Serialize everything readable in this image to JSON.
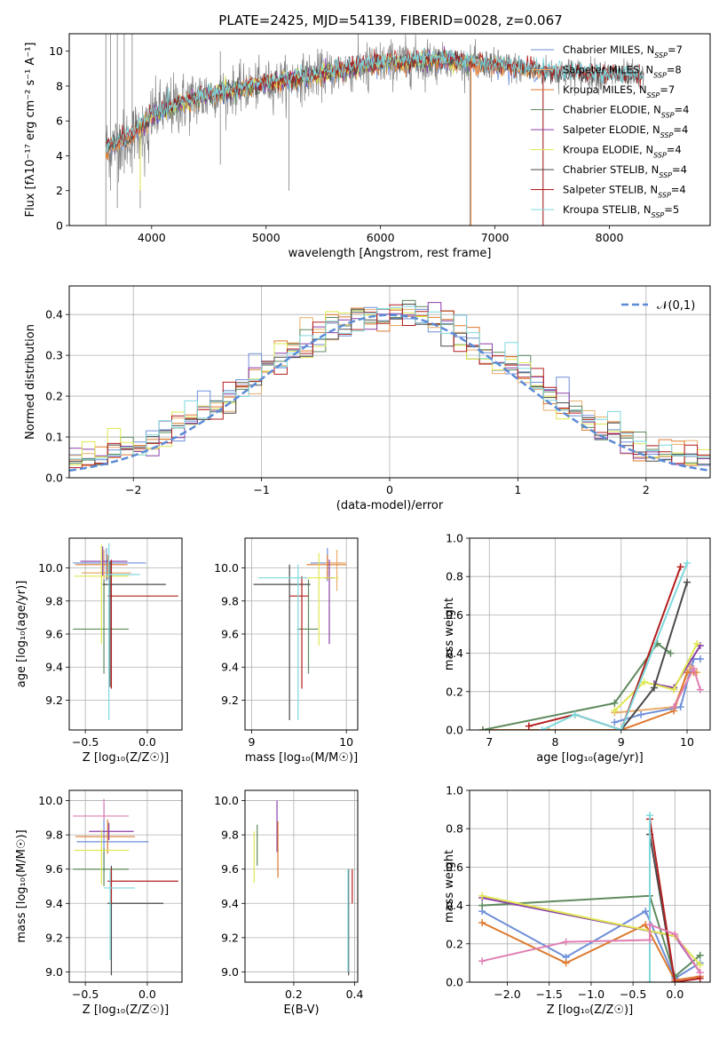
{
  "colors": {
    "Chabrier MILES": "#6f8fd8",
    "Salpeter MILES": "#e8ac6a",
    "Kroupa MILES": "#dd7a2f",
    "Chabrier ELODIE": "#5e8a5e",
    "Salpeter ELODIE": "#8b3fa8",
    "Kroupa ELODIE": "#dfe850",
    "Chabrier STELIB": "#4a4a4a",
    "Salpeter STELIB": "#b21e1e",
    "Kroupa STELIB": "#7dd8dc",
    "extra": "#e07fb2",
    "gauss": "#5b8bd6",
    "spectrum": "#808080"
  },
  "chart_data": [
    {
      "id": "spectrum",
      "type": "line",
      "title": "PLATE=2425, MJD=54139, FIBERID=0028, z=0.067",
      "xlabel": "wavelength [Angstrom, rest frame]",
      "ylabel": "Flux [fλ10⁻¹⁷ erg cm⁻² s⁻¹ A⁻¹]",
      "xlim": [
        3280,
        8880
      ],
      "ylim": [
        0,
        11
      ],
      "xticks": [
        4000,
        5000,
        6000,
        7000,
        8000
      ],
      "yticks": [
        0,
        2,
        4,
        6,
        8,
        10
      ],
      "legend_position": "right",
      "series": [
        {
          "name": "Chabrier MILES, N",
          "sub": "SSP",
          "suffix": "=7"
        },
        {
          "name": "Salpeter MILES, N",
          "sub": "SSP",
          "suffix": "=8"
        },
        {
          "name": "Kroupa MILES, N",
          "sub": "SSP",
          "suffix": "=7"
        },
        {
          "name": "Chabrier ELODIE, N",
          "sub": "SSP",
          "suffix": "=4"
        },
        {
          "name": "Salpeter ELODIE, N",
          "sub": "SSP",
          "suffix": "=4"
        },
        {
          "name": "Kroupa ELODIE, N",
          "sub": "SSP",
          "suffix": "=4"
        },
        {
          "name": "Chabrier STELIB, N",
          "sub": "SSP",
          "suffix": "=4"
        },
        {
          "name": "Salpeter STELIB, N",
          "sub": "SSP",
          "suffix": "=4"
        },
        {
          "name": "Kroupa STELIB, N",
          "sub": "SSP",
          "suffix": "=5"
        }
      ],
      "continuum": [
        [
          3600,
          4.5
        ],
        [
          3800,
          5.0
        ],
        [
          4000,
          6.3
        ],
        [
          4200,
          6.9
        ],
        [
          4500,
          7.5
        ],
        [
          5000,
          8.1
        ],
        [
          5500,
          8.7
        ],
        [
          6000,
          9.3
        ],
        [
          6500,
          9.5
        ],
        [
          7000,
          9.2
        ],
        [
          7500,
          8.8
        ],
        [
          8000,
          8.6
        ],
        [
          8300,
          8.5
        ]
      ]
    },
    {
      "id": "residuals",
      "type": "histogram",
      "xlabel": "(data-model)/error",
      "ylabel": "Normed distribution",
      "xlim": [
        -2.5,
        2.5
      ],
      "ylim": [
        0,
        0.47
      ],
      "xticks": [
        -2,
        -1,
        0,
        1,
        2
      ],
      "yticks": [
        0.0,
        0.1,
        0.2,
        0.3,
        0.4
      ],
      "legend": "𝒩(0,1)",
      "legend_position": "top-right",
      "bin_width": 0.1,
      "grid": true
    },
    {
      "id": "z-age",
      "type": "errorbar",
      "xlabel": "Z [log₁₀(Z/Z☉)]",
      "ylabel": "age  [log₁₀(age/yr)]",
      "xlim": [
        -0.63,
        0.28
      ],
      "ylim": [
        9.02,
        10.18
      ],
      "xticks": [
        -0.5,
        0.0
      ],
      "yticks": [
        9.2,
        9.4,
        9.6,
        9.8,
        10.0
      ],
      "grid": true,
      "points": [
        {
          "x": -0.33,
          "xerr": [
            0.27,
            0.32
          ],
          "y": 10.03,
          "yerr": [
            0.11,
            0.09
          ],
          "color": "#6f8fd8"
        },
        {
          "x": -0.35,
          "xerr": [
            0.18,
            0.22
          ],
          "y": 9.97,
          "yerr": [
            0.17,
            0.14
          ],
          "color": "#e8ac6a"
        },
        {
          "x": -0.32,
          "xerr": [
            0.26,
            0.16
          ],
          "y": 10.02,
          "yerr": [
            0.09,
            0.06
          ],
          "color": "#dd7a2f"
        },
        {
          "x": -0.35,
          "xerr": [
            0.25,
            0.2
          ],
          "y": 9.63,
          "yerr": [
            0.27,
            0.3
          ],
          "color": "#5e8a5e"
        },
        {
          "x": -0.36,
          "xerr": [
            0.18,
            0.2
          ],
          "y": 10.04,
          "yerr": [
            0.09,
            0.09
          ],
          "color": "#8b3fa8"
        },
        {
          "x": -0.37,
          "xerr": [
            0.22,
            0.22
          ],
          "y": 9.95,
          "yerr": [
            0.41,
            0.19
          ],
          "color": "#dfe850"
        },
        {
          "x": -0.3,
          "xerr": [
            0.06,
            0.45
          ],
          "y": 9.9,
          "yerr": [
            0.62,
            0.14
          ],
          "color": "#4a4a4a"
        },
        {
          "x": -0.29,
          "xerr": [
            0.03,
            0.54
          ],
          "y": 9.83,
          "yerr": [
            0.56,
            0.22
          ],
          "color": "#b21e1e"
        },
        {
          "x": -0.31,
          "xerr": [
            0.02,
            0.25
          ],
          "y": 9.96,
          "yerr": [
            0.88,
            0.19
          ],
          "color": "#7dd8dc"
        }
      ]
    },
    {
      "id": "mass-age",
      "type": "errorbar",
      "xlabel": "mass [log₁₀(M/M☉)]",
      "ylabel": "",
      "xlim": [
        8.93,
        10.12
      ],
      "ylim": [
        9.02,
        10.18
      ],
      "xticks": [
        9,
        10
      ],
      "yticks": [
        9.2,
        9.4,
        9.6,
        9.8,
        10.0
      ],
      "grid": true,
      "points": [
        {
          "x": 9.8,
          "xerr": [
            0.18,
            0.16
          ],
          "y": 10.03,
          "yerr": [
            0.11,
            0.09
          ],
          "color": "#6f8fd8"
        },
        {
          "x": 9.9,
          "xerr": [
            0.12,
            0.1
          ],
          "y": 10.03,
          "yerr": [
            0.17,
            0.08
          ],
          "color": "#e8ac6a"
        },
        {
          "x": 9.8,
          "xerr": [
            0.22,
            0.2
          ],
          "y": 10.02,
          "yerr": [
            0.09,
            0.06
          ],
          "color": "#dd7a2f"
        },
        {
          "x": 9.6,
          "xerr": [
            0.12,
            0.1
          ],
          "y": 9.63,
          "yerr": [
            0.27,
            0.3
          ],
          "color": "#5e8a5e"
        },
        {
          "x": 9.82,
          "xerr": [
            0.05,
            0.05
          ],
          "y": 9.94,
          "yerr": [
            0.4,
            0.11
          ],
          "color": "#8b3fa8"
        },
        {
          "x": 9.71,
          "xerr": [
            0.12,
            0.21
          ],
          "y": 9.94,
          "yerr": [
            0.41,
            0.15
          ],
          "color": "#dfe850"
        },
        {
          "x": 9.4,
          "xerr": [
            0.38,
            0.22
          ],
          "y": 9.9,
          "yerr": [
            0.82,
            0.12
          ],
          "color": "#4a4a4a"
        },
        {
          "x": 9.53,
          "xerr": [
            0.13,
            0.07
          ],
          "y": 9.83,
          "yerr": [
            0.56,
            0.12
          ],
          "color": "#b21e1e"
        },
        {
          "x": 9.49,
          "xerr": [
            0.42,
            0.1
          ],
          "y": 9.94,
          "yerr": [
            0.86,
            0.08
          ],
          "color": "#7dd8dc"
        }
      ]
    },
    {
      "id": "age-weight",
      "type": "line",
      "xlabel": "age  [log₁₀(age/yr)]",
      "ylabel": "mass weight",
      "xlim": [
        6.7,
        10.35
      ],
      "ylim": [
        0,
        1.0
      ],
      "xticks": [
        7,
        8,
        9,
        10
      ],
      "yticks": [
        0.0,
        0.2,
        0.4,
        0.6,
        0.8,
        1.0
      ],
      "grid": true,
      "series": [
        {
          "color": "#6f8fd8",
          "x": [
            8.9,
            9.3,
            9.9,
            10.1,
            10.2
          ],
          "y": [
            0.04,
            0.08,
            0.12,
            0.37,
            0.37
          ]
        },
        {
          "color": "#e8ac6a",
          "x": [
            8.9,
            9.8,
            10.05,
            10.15
          ],
          "y": [
            0.09,
            0.12,
            0.33,
            0.3
          ]
        },
        {
          "color": "#dd7a2f",
          "x": [
            6.9,
            7.9,
            9.0,
            9.8,
            10.0,
            10.1
          ],
          "y": [
            0.0,
            0.0,
            0.0,
            0.1,
            0.3,
            0.3
          ]
        },
        {
          "color": "#5e8a5e",
          "x": [
            6.9,
            8.9,
            9.55,
            9.75
          ],
          "y": [
            0.0,
            0.14,
            0.45,
            0.4
          ]
        },
        {
          "color": "#8b3fa8",
          "x": [
            9.5,
            9.8,
            10.2
          ],
          "y": [
            0.24,
            0.22,
            0.44
          ]
        },
        {
          "color": "#dfe850",
          "x": [
            8.9,
            9.35,
            9.8,
            10.15
          ],
          "y": [
            0.1,
            0.25,
            0.21,
            0.45
          ]
        },
        {
          "color": "#4a4a4a",
          "x": [
            9.0,
            9.5,
            10.0
          ],
          "y": [
            0.0,
            0.22,
            0.77
          ]
        },
        {
          "color": "#b21e1e",
          "x": [
            7.6,
            8.3,
            9.0,
            9.9
          ],
          "y": [
            0.02,
            0.08,
            0.0,
            0.85
          ]
        },
        {
          "color": "#7dd8dc",
          "x": [
            7.8,
            8.3,
            9.0,
            10.0
          ],
          "y": [
            0.0,
            0.08,
            0.0,
            0.87
          ]
        },
        {
          "color": "#e07fb2",
          "x": [
            9.8,
            10.1,
            10.2
          ],
          "y": [
            0.12,
            0.32,
            0.21
          ]
        }
      ]
    },
    {
      "id": "z-mass",
      "type": "errorbar",
      "xlabel": "Z [log₁₀(Z/Z☉)]",
      "ylabel": "mass [log₁₀(M/M☉)]",
      "xlim": [
        -0.63,
        0.28
      ],
      "ylim": [
        8.94,
        10.06
      ],
      "xticks": [
        -0.5,
        0.0
      ],
      "yticks": [
        9.0,
        9.2,
        9.4,
        9.6,
        9.8,
        10.0
      ],
      "grid": true,
      "points": [
        {
          "x": -0.35,
          "xerr": [
            0.22,
            0.36
          ],
          "y": 9.76,
          "yerr": [
            0.18,
            0.22
          ],
          "color": "#6f8fd8"
        },
        {
          "x": -0.32,
          "xerr": [
            0.26,
            0.22
          ],
          "y": 9.79,
          "yerr": [
            0.1,
            0.1
          ],
          "color": "#dd7a2f"
        },
        {
          "x": -0.35,
          "xerr": [
            0.25,
            0.2
          ],
          "y": 9.6,
          "yerr": [
            0.1,
            0.12
          ],
          "color": "#5e8a5e"
        },
        {
          "x": -0.31,
          "xerr": [
            0.16,
            0.2
          ],
          "y": 9.82,
          "yerr": [
            0.05,
            0.05
          ],
          "color": "#8b3fa8"
        },
        {
          "x": -0.37,
          "xerr": [
            0.22,
            0.22
          ],
          "y": 9.71,
          "yerr": [
            0.2,
            0.12
          ],
          "color": "#dfe850"
        },
        {
          "x": -0.29,
          "xerr": [
            0.03,
            0.42
          ],
          "y": 9.4,
          "yerr": [
            0.42,
            0.22
          ],
          "color": "#4a4a4a"
        },
        {
          "x": -0.29,
          "xerr": [
            0.03,
            0.54
          ],
          "y": 9.53,
          "yerr": [
            0.13,
            0.07
          ],
          "color": "#b21e1e"
        },
        {
          "x": -0.3,
          "xerr": [
            0.05,
            0.2
          ],
          "y": 9.49,
          "yerr": [
            0.42,
            0.1
          ],
          "color": "#7dd8dc"
        },
        {
          "x": -0.35,
          "xerr": [
            0.25,
            0.2
          ],
          "y": 9.91,
          "yerr": [
            0.02,
            0.1
          ],
          "color": "#e07fb2"
        }
      ]
    },
    {
      "id": "ebv-mass",
      "type": "errorbar",
      "xlabel": "E(B-V)",
      "ylabel": "",
      "xlim": [
        0.04,
        0.41
      ],
      "ylim": [
        8.94,
        10.06
      ],
      "xticks": [
        0.2,
        0.4
      ],
      "yticks": [
        9.0,
        9.2,
        9.4,
        9.6,
        9.8,
        10.0
      ],
      "grid": true,
      "points": [
        {
          "x": 0.07,
          "y": 9.76,
          "yerr": [
            0.24,
            0.06
          ],
          "color": "#dfe850"
        },
        {
          "x": 0.08,
          "y": 9.76,
          "yerr": [
            0.14,
            0.1
          ],
          "color": "#5e8a5e"
        },
        {
          "x": 0.145,
          "y": 9.9,
          "yerr": [
            0.2,
            0.1
          ],
          "color": "#8b3fa8"
        },
        {
          "x": 0.148,
          "y": 9.75,
          "yerr": [
            0.2,
            0.13
          ],
          "color": "#dd7a2f"
        },
        {
          "x": 0.38,
          "y": 9.4,
          "yerr": [
            0.42,
            0.2
          ],
          "color": "#4a4a4a"
        },
        {
          "x": 0.392,
          "y": 9.5,
          "yerr": [
            0.1,
            0.1
          ],
          "color": "#b21e1e"
        },
        {
          "x": 0.378,
          "y": 9.4,
          "yerr": [
            0.4,
            0.2
          ],
          "color": "#7dd8dc"
        }
      ]
    },
    {
      "id": "z-weight",
      "type": "line",
      "xlabel": "Z [log₁₀(Z/Z☉)]",
      "ylabel": "mass weight",
      "xlim": [
        -2.45,
        0.42
      ],
      "ylim": [
        0,
        1.0
      ],
      "xticks": [
        -2.0,
        -1.5,
        -1.0,
        -0.5,
        0.0
      ],
      "yticks": [
        0.0,
        0.2,
        0.4,
        0.6,
        0.8,
        1.0
      ],
      "grid": true,
      "series": [
        {
          "color": "#6f8fd8",
          "x": [
            -2.3,
            -1.3,
            -0.35,
            0.0,
            0.3
          ],
          "y": [
            0.37,
            0.13,
            0.37,
            0.02,
            0.1
          ]
        },
        {
          "color": "#dd7a2f",
          "x": [
            -2.3,
            -1.3,
            -0.35,
            0.0,
            0.3
          ],
          "y": [
            0.31,
            0.1,
            0.3,
            0.01,
            0.03
          ]
        },
        {
          "color": "#5e8a5e",
          "x": [
            -2.3,
            -0.3,
            0.0,
            0.3
          ],
          "y": [
            0.4,
            0.45,
            0.03,
            0.14
          ]
        },
        {
          "color": "#8b3fa8",
          "x": [
            -2.3,
            0.0,
            0.3
          ],
          "y": [
            0.44,
            0.24,
            0.05
          ]
        },
        {
          "color": "#dfe850",
          "x": [
            -2.3,
            0.0,
            0.3
          ],
          "y": [
            0.45,
            0.24,
            0.09
          ]
        },
        {
          "color": "#4a4a4a",
          "x": [
            -0.3,
            0.0
          ],
          "y": [
            0.77,
            0.0
          ]
        },
        {
          "color": "#b21e1e",
          "x": [
            -0.3,
            0.0,
            0.3
          ],
          "y": [
            0.85,
            0.0,
            0.02
          ]
        },
        {
          "color": "#7dd8dc",
          "x": [
            -0.3,
            -0.3
          ],
          "y": [
            0.87,
            0.0
          ]
        },
        {
          "color": "#e07fb2",
          "x": [
            -2.3,
            -1.3,
            -0.3,
            -0.3,
            0.0,
            0.3
          ],
          "y": [
            0.11,
            0.21,
            0.22,
            0.3,
            0.25,
            0.05
          ]
        }
      ]
    }
  ]
}
